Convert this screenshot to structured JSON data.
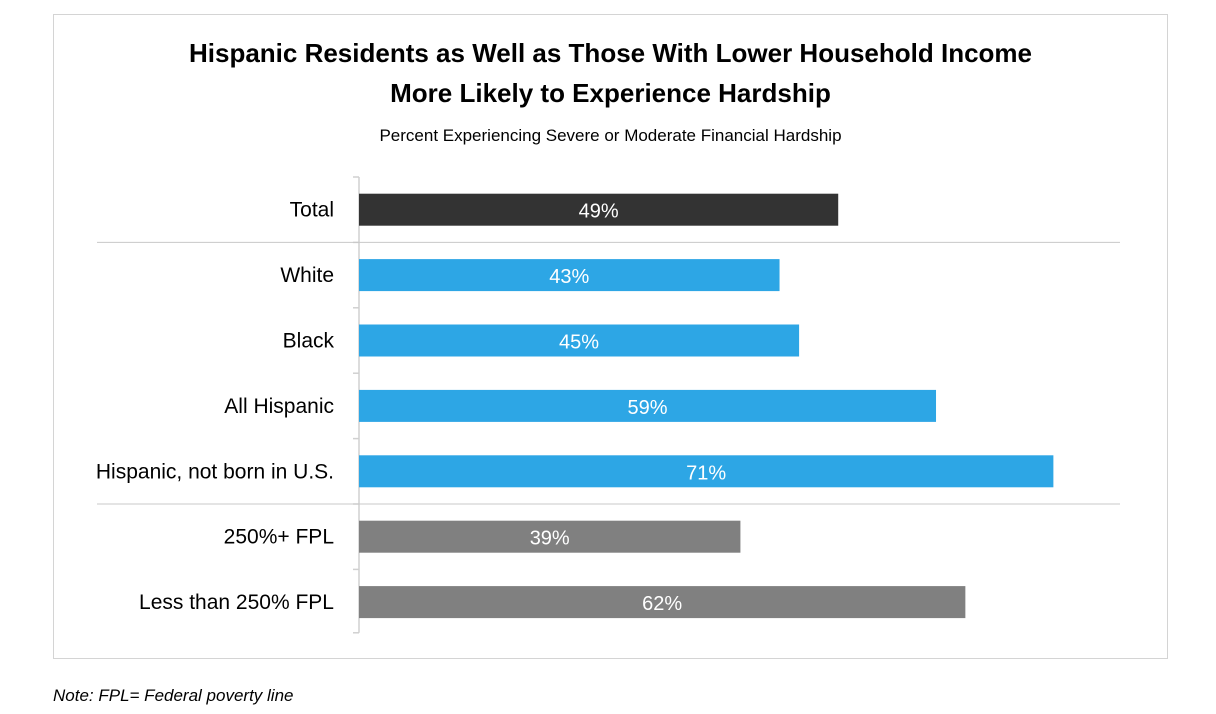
{
  "chart_data": {
    "type": "bar",
    "orientation": "horizontal",
    "title_line1": "Hispanic Residents as Well as Those With Lower Household Income",
    "title_line2": "More Likely to Experience Hardship",
    "subtitle": "Percent Experiencing Severe or Moderate Financial Hardship",
    "unit": "%",
    "xlim": [
      0,
      100
    ],
    "grid": false,
    "categories": [
      "Total",
      "White",
      "Black",
      "All Hispanic",
      "Hispanic, not born in U.S.",
      "250%+ FPL",
      "Less than 250% FPL"
    ],
    "values": [
      49,
      43,
      45,
      59,
      71,
      39,
      62
    ],
    "data_labels": [
      "49%",
      "43%",
      "45%",
      "59%",
      "71%",
      "39%",
      "62%"
    ],
    "bar_colors": [
      "#333333",
      "#2da6e5",
      "#2da6e5",
      "#2da6e5",
      "#2da6e5",
      "#808080",
      "#808080"
    ],
    "group_breaks_after": [
      "Total",
      "Hispanic, not born in U.S."
    ]
  },
  "note": "Note: FPL= Federal poverty line"
}
